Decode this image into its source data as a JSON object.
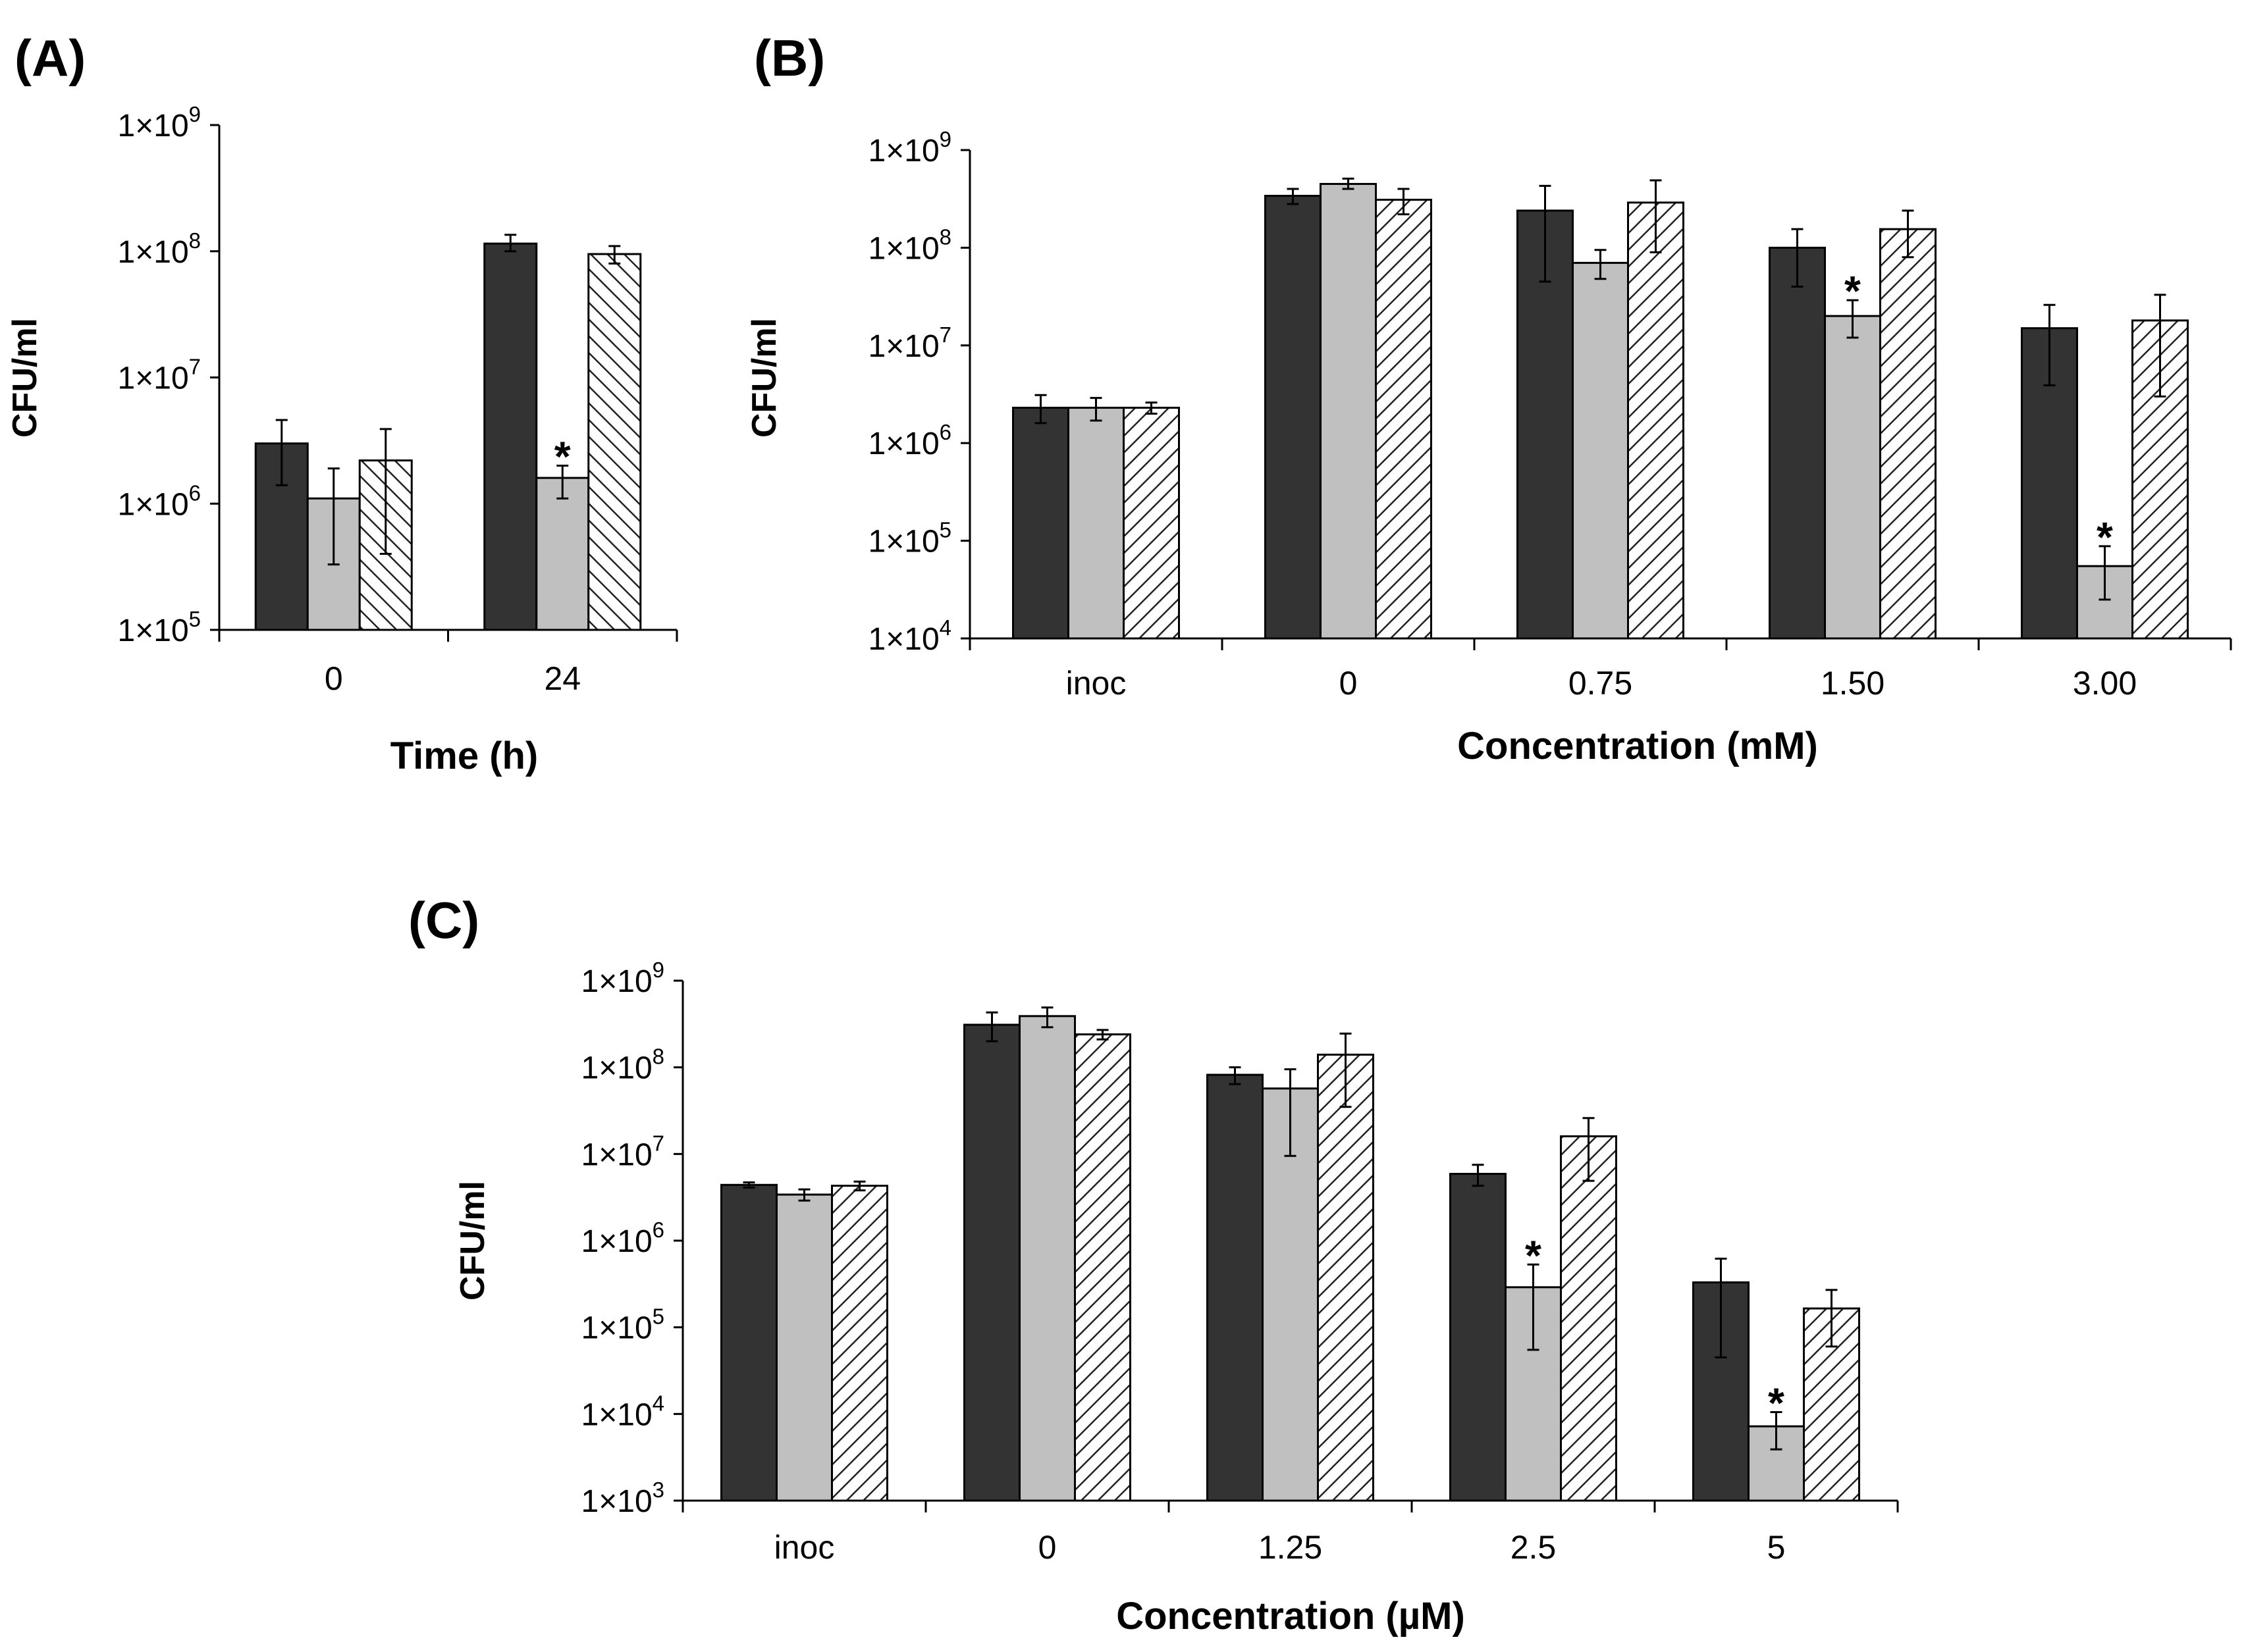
{
  "chart_data": [
    {
      "panel": "(A)",
      "type": "bar",
      "scale": "log",
      "ylabel": "CFU/ml",
      "xlabel": "Time (h)",
      "ylim": [
        100000,
        1000000000
      ],
      "yticks": [
        {
          "value": 100000,
          "base": "1×10",
          "exp": "5"
        },
        {
          "value": 1000000,
          "base": "1×10",
          "exp": "6"
        },
        {
          "value": 10000000,
          "base": "1×10",
          "exp": "7"
        },
        {
          "value": 100000000,
          "base": "1×10",
          "exp": "8"
        },
        {
          "value": 1000000000,
          "base": "1×10",
          "exp": "9"
        }
      ],
      "categories": [
        "0",
        "24"
      ],
      "series": [
        {
          "style": "dark",
          "values": [
            3000000,
            115000000
          ],
          "err_low": [
            1400000,
            100000000
          ],
          "err_high": [
            4600000,
            135000000
          ]
        },
        {
          "style": "light",
          "values": [
            1100000,
            1600000
          ],
          "err_low": [
            330000,
            1100000
          ],
          "err_high": [
            1900000,
            2000000
          ]
        },
        {
          "style": "hatch-back",
          "values": [
            2200000,
            95000000
          ],
          "err_low": [
            400000,
            80000000
          ],
          "err_high": [
            3900000,
            110000000
          ]
        }
      ],
      "asterisks": [
        {
          "category": 1,
          "series": 1,
          "text": "*"
        }
      ]
    },
    {
      "panel": "(B)",
      "type": "bar",
      "scale": "log",
      "ylabel": "CFU/ml",
      "xlabel": "Concentration (mM)",
      "ylim": [
        10000,
        1000000000
      ],
      "yticks": [
        {
          "value": 10000,
          "base": "1×10",
          "exp": "4"
        },
        {
          "value": 100000,
          "base": "1×10",
          "exp": "5"
        },
        {
          "value": 1000000,
          "base": "1×10",
          "exp": "6"
        },
        {
          "value": 10000000,
          "base": "1×10",
          "exp": "7"
        },
        {
          "value": 100000000,
          "base": "1×10",
          "exp": "8"
        },
        {
          "value": 1000000000,
          "base": "1×10",
          "exp": "9"
        }
      ],
      "categories": [
        "inoc",
        "0",
        "0.75",
        "1.50",
        "3.00"
      ],
      "series": [
        {
          "style": "dark",
          "values": [
            2300000,
            340000000,
            240000000,
            100000000,
            15000000
          ],
          "err_low": [
            1600000,
            280000000,
            45000000,
            40000000,
            3900000
          ],
          "err_high": [
            3100000,
            400000000,
            430000000,
            155000000,
            26000000
          ]
        },
        {
          "style": "light",
          "values": [
            2300000,
            450000000,
            70000000,
            20000000,
            55000
          ],
          "err_low": [
            1700000,
            400000000,
            48000000,
            12000000,
            25000
          ],
          "err_high": [
            2900000,
            510000000,
            95000000,
            29000000,
            88000
          ]
        },
        {
          "style": "hatch-fwd",
          "values": [
            2300000,
            310000000,
            290000000,
            155000000,
            18000000
          ],
          "err_low": [
            2000000,
            220000000,
            90000000,
            80000000,
            3000000
          ],
          "err_high": [
            2600000,
            400000000,
            490000000,
            240000000,
            33000000
          ]
        }
      ],
      "asterisks": [
        {
          "category": 3,
          "series": 1,
          "text": "*"
        },
        {
          "category": 4,
          "series": 1,
          "text": "*"
        }
      ]
    },
    {
      "panel": "(C)",
      "type": "bar",
      "scale": "log",
      "ylabel": "CFU/ml",
      "xlabel": "Concentration (µM)",
      "ylim": [
        1000,
        1000000000
      ],
      "yticks": [
        {
          "value": 1000,
          "base": "1×10",
          "exp": "3"
        },
        {
          "value": 10000,
          "base": "1×10",
          "exp": "4"
        },
        {
          "value": 100000,
          "base": "1×10",
          "exp": "5"
        },
        {
          "value": 1000000,
          "base": "1×10",
          "exp": "6"
        },
        {
          "value": 10000000,
          "base": "1×10",
          "exp": "7"
        },
        {
          "value": 100000000,
          "base": "1×10",
          "exp": "8"
        },
        {
          "value": 1000000000,
          "base": "1×10",
          "exp": "9"
        }
      ],
      "categories": [
        "inoc",
        "0",
        "1.25",
        "2.5",
        "5"
      ],
      "series": [
        {
          "style": "dark",
          "values": [
            4400000,
            310000000,
            82000000,
            5900000,
            330000
          ],
          "err_low": [
            4100000,
            200000000,
            64000000,
            4300000,
            45000
          ],
          "err_high": [
            4700000,
            430000000,
            100000000,
            7500000,
            620000
          ]
        },
        {
          "style": "light",
          "values": [
            3400000,
            390000000,
            57000000,
            290000,
            7200
          ],
          "err_low": [
            2900000,
            290000000,
            9500000,
            55000,
            3900
          ],
          "err_high": [
            3900000,
            490000000,
            95000000,
            530000,
            10500
          ]
        },
        {
          "style": "hatch-fwd",
          "values": [
            4300000,
            240000000,
            140000000,
            16000000,
            165000
          ],
          "err_low": [
            3800000,
            210000000,
            35000000,
            4900000,
            60000
          ],
          "err_high": [
            4800000,
            270000000,
            245000000,
            26000000,
            270000
          ]
        }
      ],
      "asterisks": [
        {
          "category": 3,
          "series": 1,
          "text": "*"
        },
        {
          "category": 4,
          "series": 1,
          "text": "*"
        }
      ]
    }
  ]
}
